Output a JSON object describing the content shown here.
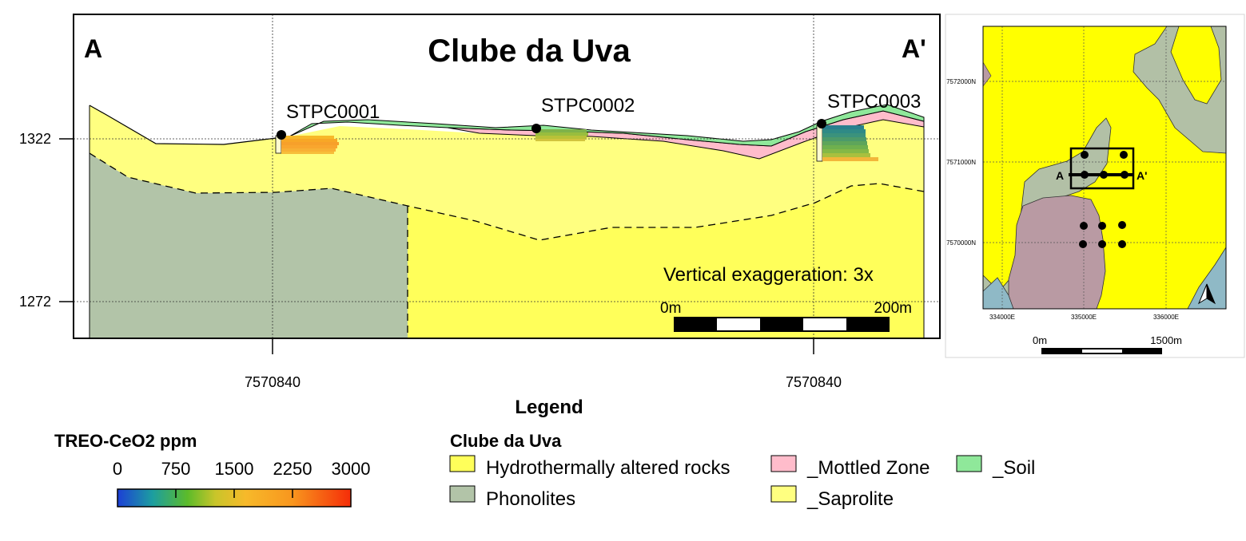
{
  "section": {
    "title": "Clube da Uva",
    "left_label": "A",
    "right_label": "A'",
    "y_ticks": [
      "1322",
      "1272"
    ],
    "x_ticks": [
      "7570840",
      "7570840"
    ],
    "drillholes": [
      "STPC0001",
      "STPC0002",
      "STPC0003"
    ],
    "exaggeration_text": "Vertical exaggeration: 3x",
    "scalebar": {
      "start": "0m",
      "end": "200m"
    }
  },
  "inset_map": {
    "northings": [
      "7572000N",
      "7571000N",
      "7570000N"
    ],
    "eastings": [
      "334000E",
      "335000E",
      "336000E"
    ],
    "section_start": "A",
    "section_end": "A'",
    "scalebar": {
      "start": "0m",
      "end": "1500m"
    },
    "icons": [
      "north-arrow-icon"
    ]
  },
  "legend": {
    "title": "Legend",
    "colorbar": {
      "title": "TREO-CeO2 ppm",
      "ticks": [
        "0",
        "750",
        "1500",
        "2250",
        "3000"
      ],
      "min": 0,
      "max": 3000
    },
    "group_title": "Clube da Uva",
    "items": [
      {
        "label": "Hydrothermally altered rocks",
        "color": "#ffff5a"
      },
      {
        "label": "Phonolites",
        "color": "#b2c4a8"
      },
      {
        "label": "_Mottled Zone",
        "color": "#ffbccb"
      },
      {
        "label": "_Saprolite",
        "color": "#ffff80"
      },
      {
        "label": "_Soil",
        "color": "#8fe89a"
      }
    ]
  },
  "colors": {
    "hydrothermal": "#ffff5a",
    "saprolite": "#ffff80",
    "phonolite": "#b2c4a8",
    "mottled": "#ffbccb",
    "soil": "#8fe89a",
    "map_yellow": "#ffff00",
    "map_green": "#b2c0a6",
    "map_mauve": "#b99aa3",
    "map_blue": "#8fb9c6"
  }
}
